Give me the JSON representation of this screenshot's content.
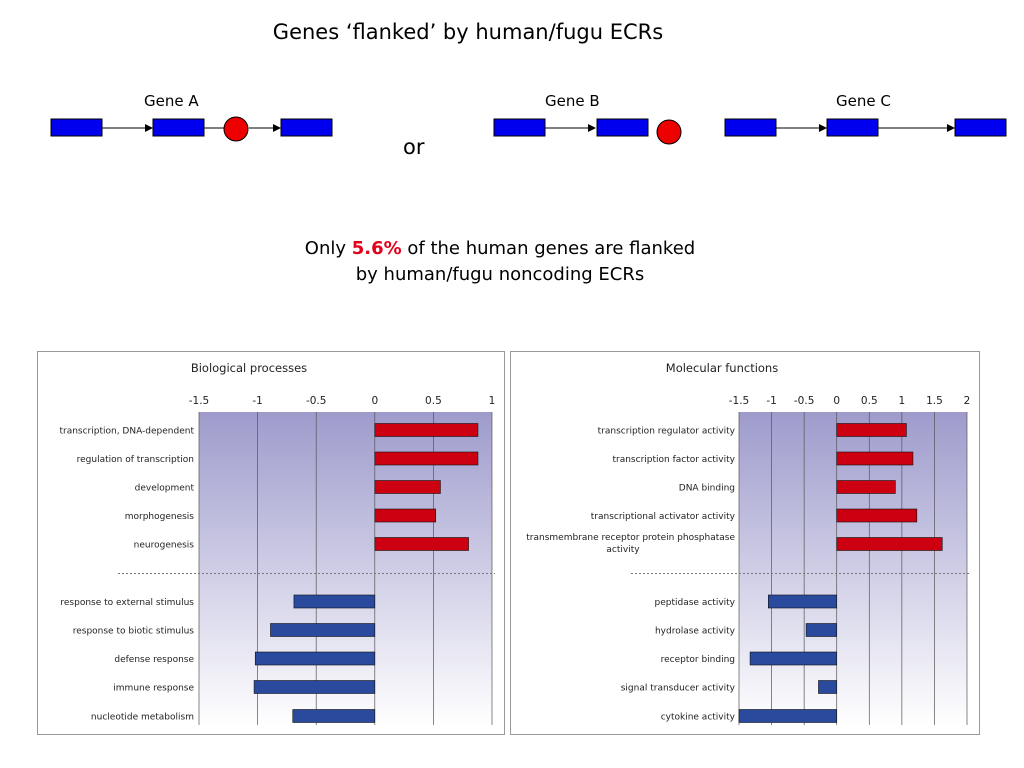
{
  "title": "Genes ‘flanked’ by human/fugu ECRs",
  "diagram": {
    "gene_a": "Gene A",
    "gene_b": "Gene B",
    "gene_c": "Gene C",
    "or_label": "or",
    "colors": {
      "gene_box": "#0000ee",
      "ecr_circle": "#ee0000"
    }
  },
  "summary": {
    "prefix": "Only ",
    "percent": "5.6%",
    "suffix": " of the human genes are flanked",
    "line2": "by human/fugu noncoding ECRs"
  },
  "chart_data": [
    {
      "type": "bar",
      "orientation": "horizontal",
      "title": "Biological processes",
      "xlim": [
        -1.5,
        1
      ],
      "ticks": [
        "-1.5",
        "-1",
        "-0.5",
        "0",
        "0.5",
        "1"
      ],
      "tick_values": [
        -1.5,
        -1,
        -0.5,
        0,
        0.5,
        1
      ],
      "grid": true,
      "colors": {
        "positive": "#cc0011",
        "negative": "#2a4a9e",
        "background_top": "#9e9bcc"
      },
      "groups": [
        {
          "categories": [
            "transcription, DNA-dependent",
            "regulation of transcription",
            "development",
            "morphogenesis",
            "neurogenesis"
          ],
          "values": [
            0.88,
            0.88,
            0.56,
            0.52,
            0.8
          ]
        },
        {
          "categories": [
            "response to external stimulus",
            "response to biotic stimulus",
            "defense response",
            "immune response",
            "nucleotide metabolism"
          ],
          "values": [
            -0.69,
            -0.89,
            -1.02,
            -1.03,
            -0.7
          ]
        }
      ]
    },
    {
      "type": "bar",
      "orientation": "horizontal",
      "title": "Molecular functions",
      "xlim": [
        -1.5,
        2
      ],
      "ticks": [
        "-1.5",
        "-1",
        "-0.5",
        "0",
        "0.5",
        "1",
        "1.5",
        "2"
      ],
      "tick_values": [
        -1.5,
        -1,
        -0.5,
        0,
        0.5,
        1,
        1.5,
        2
      ],
      "grid": true,
      "colors": {
        "positive": "#cc0011",
        "negative": "#2a4a9e",
        "background_top": "#9e9bcc"
      },
      "groups": [
        {
          "categories": [
            "transcription regulator activity",
            "transcription factor activity",
            "DNA binding",
            "transcriptional activator activity",
            "transmembrane receptor protein phosphatase activity"
          ],
          "values": [
            1.07,
            1.17,
            0.9,
            1.23,
            1.62
          ]
        },
        {
          "categories": [
            "peptidase activity",
            "hydrolase activity",
            "receptor binding",
            "signal transducer activity",
            "cytokine activity"
          ],
          "values": [
            -1.05,
            -0.47,
            -1.33,
            -0.28,
            -1.5
          ]
        }
      ]
    }
  ]
}
